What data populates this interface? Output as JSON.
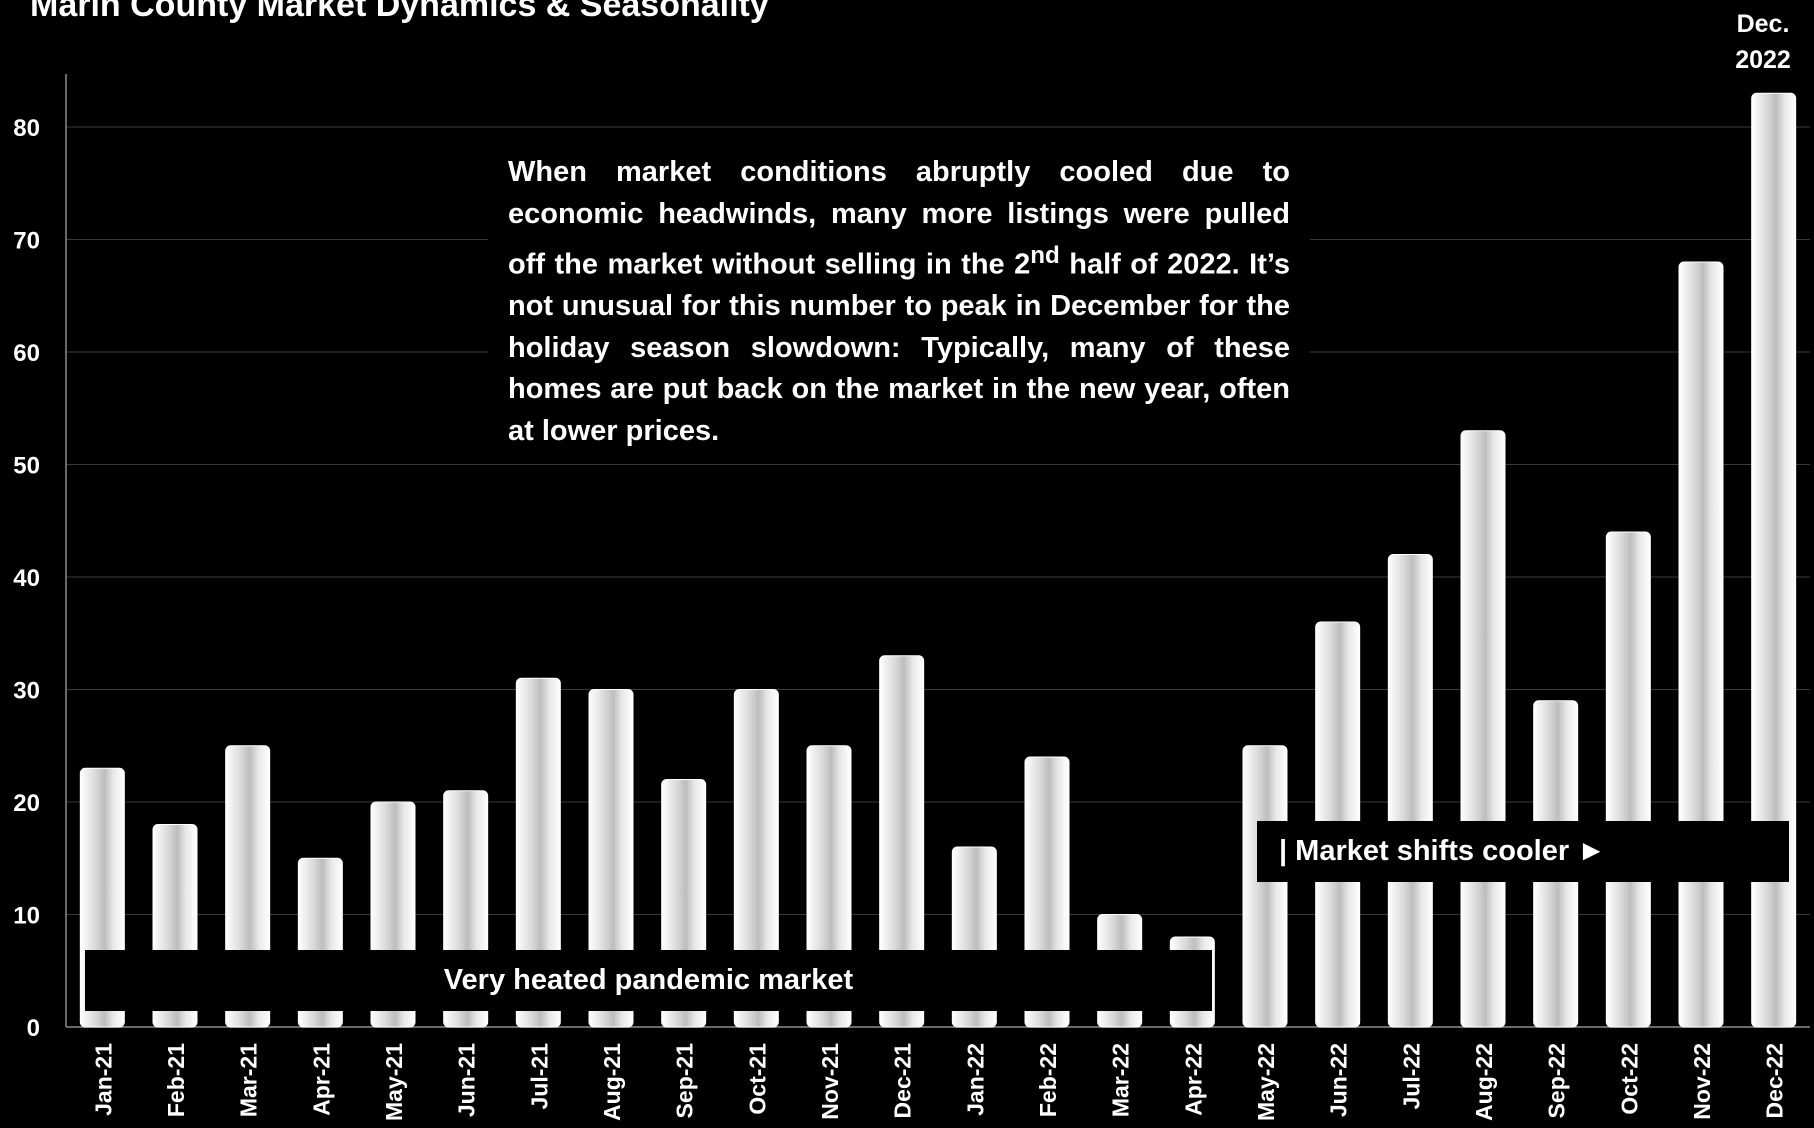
{
  "chart_data": {
    "type": "bar",
    "title": "Marin County Market Dynamics & Seasonality",
    "xlabel": "",
    "ylabel": "",
    "ylim": [
      0,
      85
    ],
    "yticks": [
      0,
      10,
      20,
      30,
      40,
      50,
      60,
      70,
      80
    ],
    "grid": true,
    "categories": [
      "Jan-21",
      "Feb-21",
      "Mar-21",
      "Apr-21",
      "May-21",
      "Jun-21",
      "Jul-21",
      "Aug-21",
      "Sep-21",
      "Oct-21",
      "Nov-21",
      "Dec-21",
      "Jan-22",
      "Feb-22",
      "Mar-22",
      "Apr-22",
      "May-22",
      "Jun-22",
      "Jul-22",
      "Aug-22",
      "Sep-22",
      "Oct-22",
      "Nov-22",
      "Dec-22"
    ],
    "values": [
      23,
      18,
      25,
      15,
      20,
      21,
      31,
      30,
      22,
      30,
      25,
      33,
      16,
      24,
      10,
      8,
      25,
      36,
      42,
      53,
      29,
      44,
      68,
      83
    ],
    "bar_color": "#f2f2f2",
    "background": "#000000",
    "text_color": "#ffffff",
    "annotations": {
      "peak": {
        "line1": "Dec.",
        "line2": "2022"
      },
      "note": {
        "part1": "When market conditions abruptly cooled due to economic headwinds, many more listings were pulled off the market without selling in the 2",
        "superscript": "nd",
        "part2": " half of 2022. It’s not unusual for this number to peak in December for the holiday season slowdown: Typically, many of these homes are put back on the market in the new year, often at lower prices."
      },
      "heated_banner": "Very heated pandemic market",
      "cooler_banner": "| Market shifts cooler ►"
    }
  }
}
